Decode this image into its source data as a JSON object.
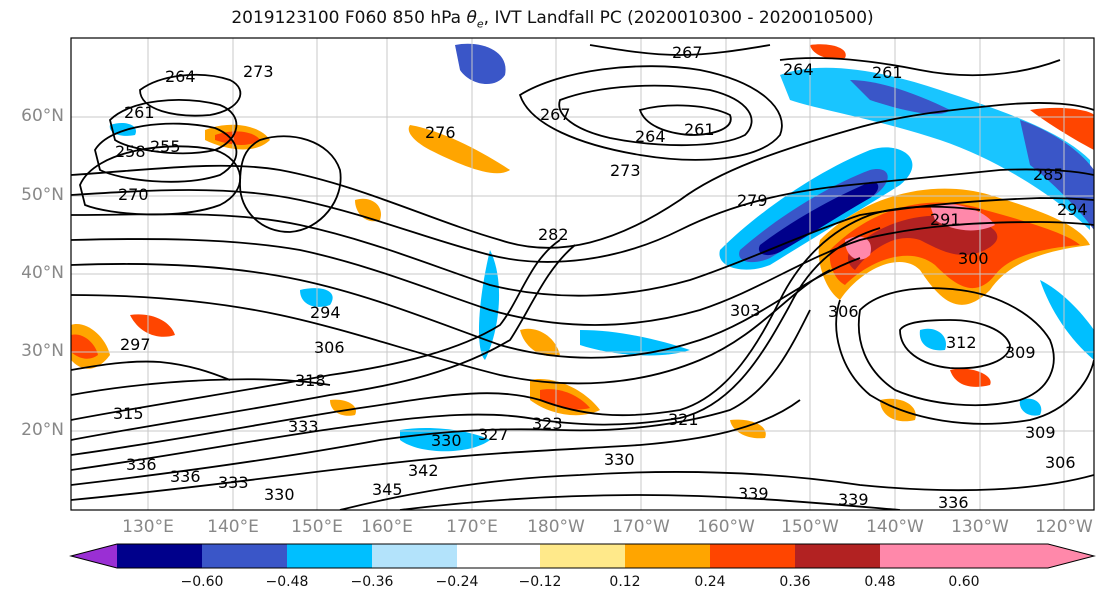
{
  "title": {
    "prefix": "2019123100 F060 850 hPa ",
    "symbol": "θ",
    "subscript": "e",
    "suffix": ", IVT Landfall PC (2020010300 - 2020010500)"
  },
  "lat_labels": [
    "60°N",
    "50°N",
    "40°N",
    "30°N",
    "20°N"
  ],
  "lon_labels": [
    "130°E",
    "140°E",
    "150°E",
    "160°E",
    "170°E",
    "180°W",
    "170°W",
    "160°W",
    "150°W",
    "140°W",
    "130°W",
    "120°W"
  ],
  "colorbar": {
    "colors": [
      "#9a2fd4",
      "#00008b",
      "#3a56c8",
      "#00bfff",
      "#b3e3fb",
      "#ffffff",
      "#ffe98a",
      "#ffa500",
      "#ff4500",
      "#b22222",
      "#ff88aa"
    ],
    "tick_labels": [
      "−0.60",
      "−0.48",
      "−0.36",
      "−0.24",
      "−0.12",
      "0.12",
      "0.24",
      "0.36",
      "0.48",
      "0.60"
    ]
  },
  "contour_labels": [
    "264",
    "261",
    "258",
    "255",
    "273",
    "270",
    "276",
    "267",
    "264",
    "261",
    "267",
    "264",
    "261",
    "273",
    "279",
    "282",
    "285",
    "291",
    "294",
    "300",
    "303",
    "306",
    "312",
    "309",
    "294",
    "297",
    "306",
    "315",
    "318",
    "323",
    "321",
    "327",
    "330",
    "333",
    "336",
    "339",
    "342",
    "345",
    "330",
    "336",
    "333",
    "339",
    "306",
    "309",
    "336",
    "330"
  ]
}
